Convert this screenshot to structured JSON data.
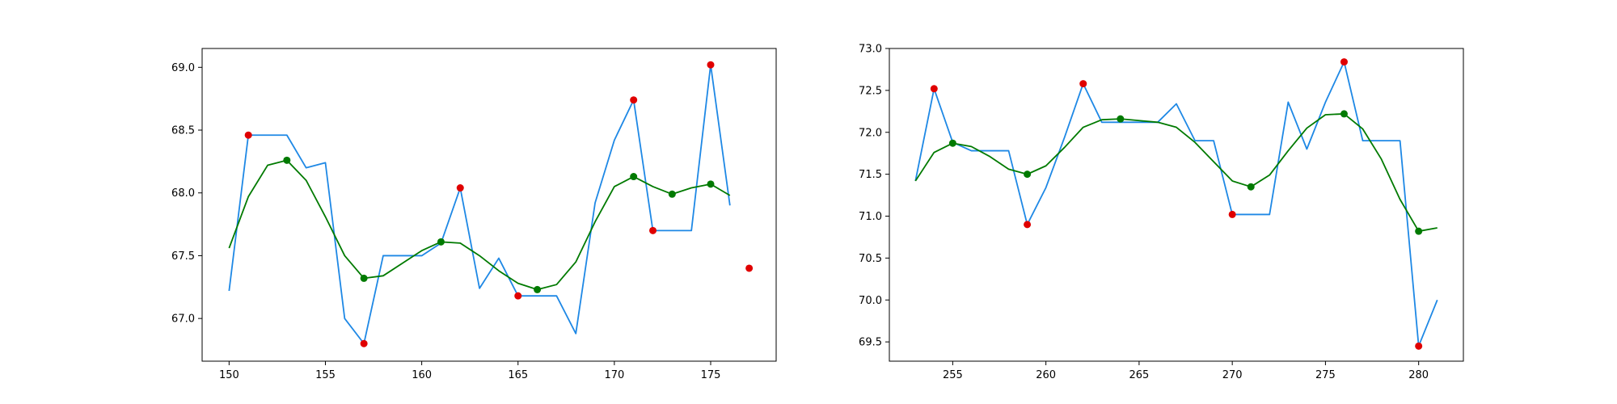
{
  "colors": {
    "raw_line": "#1e88e5",
    "smooth_line": "#007a00",
    "peak_marker": "#e00000",
    "smooth_marker": "#007a00"
  },
  "chart_data": [
    {
      "type": "line",
      "xlim": [
        148.6,
        178.4
      ],
      "ylim": [
        66.66,
        69.15
      ],
      "xticks": [
        150,
        155,
        160,
        165,
        170,
        175
      ],
      "yticks": [
        67.0,
        67.5,
        68.0,
        68.5,
        69.0
      ],
      "xtick_labels": [
        "150",
        "155",
        "160",
        "165",
        "170",
        "175"
      ],
      "ytick_labels": [
        "67.0",
        "67.5",
        "68.0",
        "68.5",
        "69.0"
      ],
      "grid": false,
      "series": [
        {
          "style": "line",
          "color": "#1e88e5",
          "x": [
            150,
            151,
            152,
            153,
            154,
            155,
            156,
            157,
            158,
            159,
            160,
            161,
            162,
            163,
            164,
            165,
            166,
            167,
            168,
            169,
            170,
            171,
            172,
            173,
            174,
            175,
            176
          ],
          "y": [
            67.22,
            68.46,
            68.46,
            68.46,
            68.2,
            68.24,
            67.0,
            66.8,
            67.5,
            67.5,
            67.5,
            67.6,
            68.04,
            67.24,
            67.48,
            67.18,
            67.18,
            67.18,
            66.88,
            67.92,
            68.42,
            68.74,
            67.7,
            67.7,
            67.7,
            69.02,
            67.9
          ]
        },
        {
          "style": "line",
          "color": "#007a00",
          "x": [
            150,
            151,
            152,
            153,
            154,
            155,
            156,
            157,
            158,
            159,
            160,
            161,
            162,
            163,
            164,
            165,
            166,
            167,
            168,
            169,
            170,
            171,
            172,
            173,
            174,
            175,
            176
          ],
          "y": [
            67.56,
            67.97,
            68.22,
            68.26,
            68.1,
            67.81,
            67.5,
            67.32,
            67.34,
            67.44,
            67.54,
            67.61,
            67.6,
            67.5,
            67.38,
            67.28,
            67.23,
            67.27,
            67.45,
            67.77,
            68.05,
            68.13,
            68.05,
            67.99,
            68.04,
            68.07,
            67.98
          ]
        },
        {
          "style": "scatter",
          "color": "#e00000",
          "x": [
            151,
            157,
            162,
            165,
            171,
            172,
            175,
            177
          ],
          "y": [
            68.46,
            66.8,
            68.04,
            67.18,
            68.74,
            67.7,
            69.02,
            67.4
          ]
        },
        {
          "style": "scatter",
          "color": "#007a00",
          "x": [
            153,
            157,
            161,
            166,
            171,
            173,
            175
          ],
          "y": [
            68.26,
            67.32,
            67.61,
            67.23,
            68.13,
            67.99,
            68.07
          ]
        }
      ]
    },
    {
      "type": "line",
      "xlim": [
        251.6,
        282.4
      ],
      "ylim": [
        69.27,
        73.0
      ],
      "xticks": [
        255,
        260,
        265,
        270,
        275,
        280
      ],
      "yticks": [
        69.5,
        70.0,
        70.5,
        71.0,
        71.5,
        72.0,
        72.5,
        73.0
      ],
      "xtick_labels": [
        "255",
        "260",
        "265",
        "270",
        "275",
        "280"
      ],
      "ytick_labels": [
        "69.5",
        "70.0",
        "70.5",
        "71.0",
        "71.5",
        "72.0",
        "72.5",
        "73.0"
      ],
      "grid": false,
      "series": [
        {
          "style": "line",
          "color": "#1e88e5",
          "x": [
            253,
            254,
            255,
            256,
            257,
            258,
            259,
            260,
            261,
            262,
            263,
            264,
            265,
            266,
            267,
            268,
            269,
            270,
            271,
            272,
            273,
            274,
            275,
            276,
            277,
            278,
            279,
            280,
            281
          ],
          "y": [
            71.42,
            72.52,
            71.88,
            71.78,
            71.78,
            71.78,
            70.9,
            71.34,
            71.94,
            72.58,
            72.12,
            72.12,
            72.12,
            72.12,
            72.34,
            71.9,
            71.9,
            71.02,
            71.02,
            71.02,
            72.36,
            71.8,
            72.36,
            72.84,
            71.9,
            71.9,
            71.9,
            69.45,
            70.0
          ]
        },
        {
          "style": "line",
          "color": "#007a00",
          "x": [
            253,
            254,
            255,
            256,
            257,
            258,
            259,
            260,
            261,
            262,
            263,
            264,
            265,
            266,
            267,
            268,
            269,
            270,
            271,
            272,
            273,
            274,
            275,
            276,
            277,
            278,
            279,
            280,
            281
          ],
          "y": [
            71.42,
            71.76,
            71.87,
            71.83,
            71.71,
            71.56,
            71.5,
            71.6,
            71.82,
            72.06,
            72.15,
            72.16,
            72.14,
            72.12,
            72.06,
            71.88,
            71.65,
            71.42,
            71.35,
            71.49,
            71.78,
            72.05,
            72.21,
            72.22,
            72.04,
            71.68,
            71.2,
            70.82,
            70.86
          ]
        },
        {
          "style": "scatter",
          "color": "#e00000",
          "x": [
            254,
            259,
            262,
            270,
            276,
            280
          ],
          "y": [
            72.52,
            70.9,
            72.58,
            71.02,
            72.84,
            69.45
          ]
        },
        {
          "style": "scatter",
          "color": "#007a00",
          "x": [
            255,
            259,
            264,
            271,
            276,
            280
          ],
          "y": [
            71.87,
            71.5,
            72.16,
            71.35,
            72.22,
            70.82
          ]
        }
      ]
    }
  ]
}
